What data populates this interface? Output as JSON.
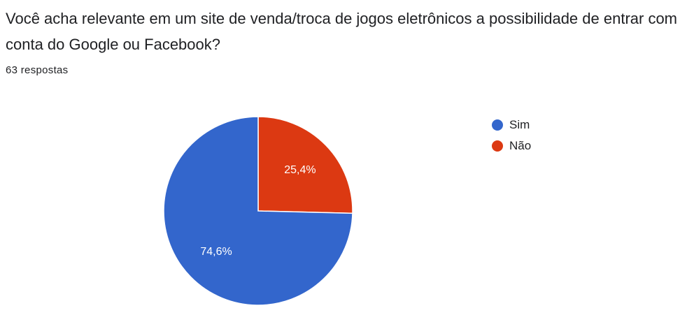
{
  "question": {
    "title": "Você acha relevante em um site de venda/troca de jogos eletrônicos a possibilidade de entrar com conta do Google ou Facebook?",
    "response_count": "63 respostas"
  },
  "chart_data": {
    "type": "pie",
    "title": "",
    "legend_placement": "right",
    "slices": [
      {
        "name": "Sim",
        "value": 74.6,
        "label": "74,6%",
        "color": "#3366cc"
      },
      {
        "name": "Não",
        "value": 25.4,
        "label": "25,4%",
        "color": "#dc3912"
      }
    ]
  }
}
